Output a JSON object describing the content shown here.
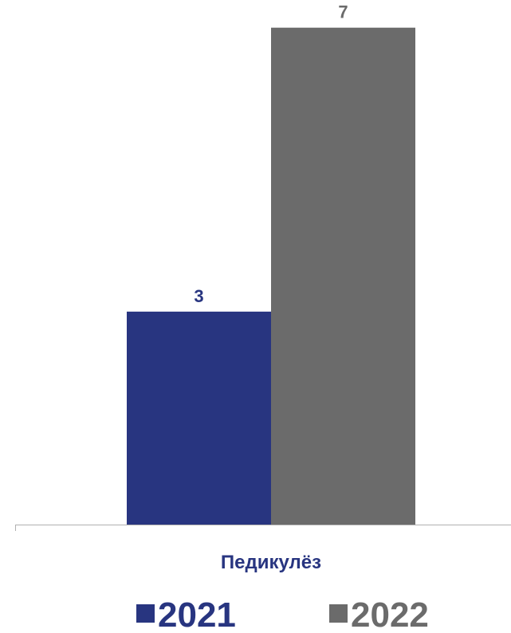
{
  "chart_data": {
    "type": "bar",
    "categories": [
      "Педикулёз"
    ],
    "series": [
      {
        "name": "2021",
        "values": [
          3
        ],
        "color": "#283580"
      },
      {
        "name": "2022",
        "values": [
          7
        ],
        "color": "#6b6b6b"
      }
    ],
    "ylim": [
      0,
      7.3
    ],
    "grid": false,
    "legend_position": "bottom",
    "data_labels": true,
    "category_label_color": "#283580"
  }
}
